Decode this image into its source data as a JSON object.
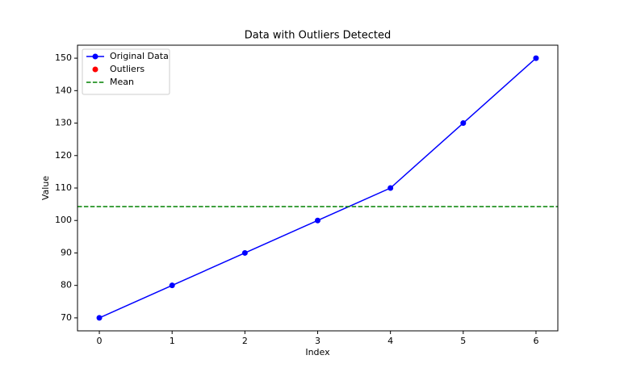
{
  "chart_data": {
    "type": "line",
    "title": "Data with Outliers Detected",
    "x_label": "Index",
    "y_label": "Value",
    "x": [
      0,
      1,
      2,
      3,
      4,
      5,
      6
    ],
    "series": [
      {
        "name": "Original Data",
        "color": "#0000ff",
        "style": "line-marker",
        "values": [
          70,
          80,
          90,
          100,
          110,
          130,
          150
        ]
      },
      {
        "name": "Outliers",
        "color": "#ff0000",
        "style": "marker",
        "values": [
          null,
          null,
          null,
          null,
          null,
          null,
          null
        ]
      },
      {
        "name": "Mean",
        "color": "#008000",
        "style": "hline",
        "value": 104.29
      }
    ],
    "xlim": [
      -0.3,
      6.3
    ],
    "ylim": [
      66,
      154
    ],
    "xticks": [
      0,
      1,
      2,
      3,
      4,
      5,
      6
    ],
    "yticks": [
      70,
      80,
      90,
      100,
      110,
      120,
      130,
      140,
      150
    ],
    "grid": false,
    "legend": "upper left"
  }
}
